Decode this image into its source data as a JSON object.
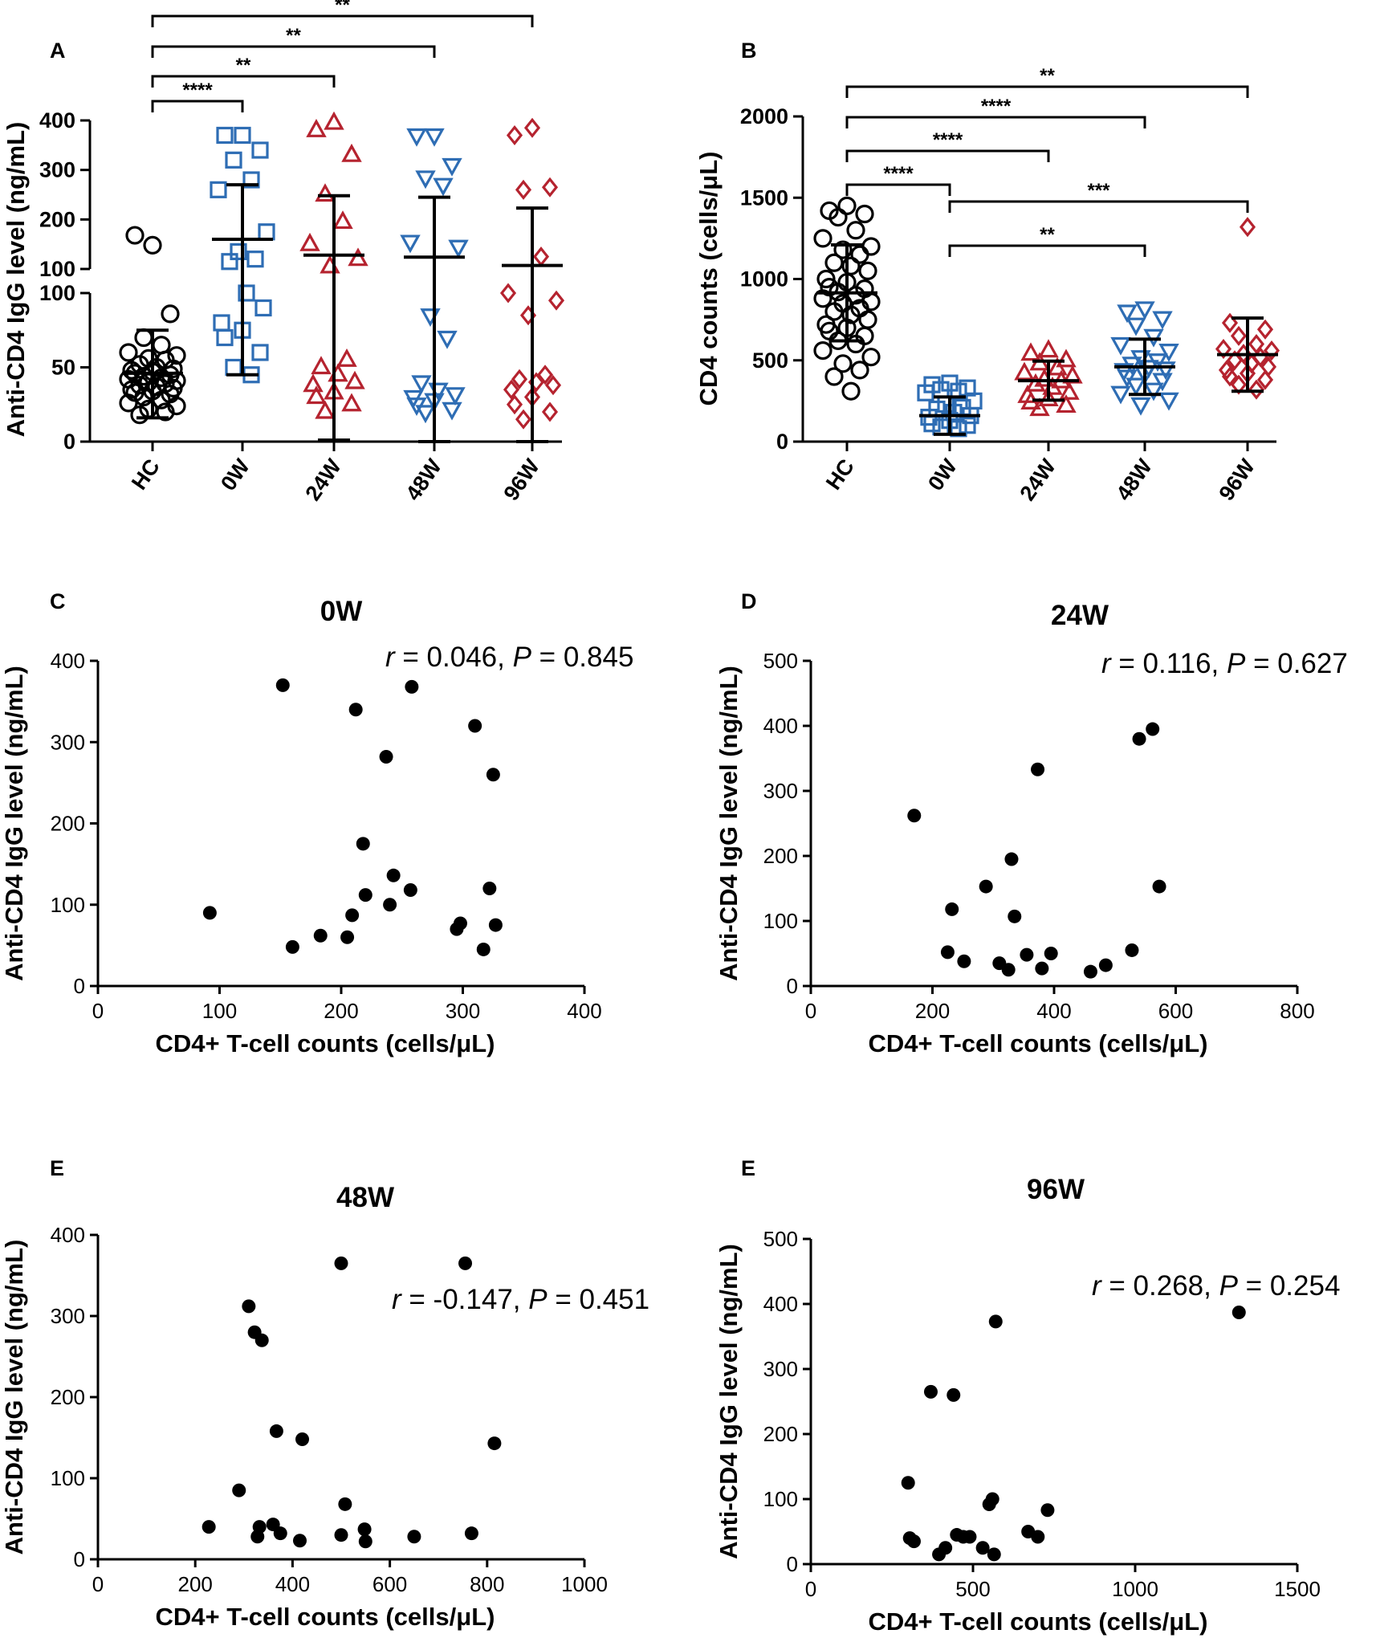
{
  "panel_labels": {
    "A": "A",
    "B": "B",
    "C": "C",
    "D": "D",
    "E1": "E",
    "E2": "E"
  },
  "colors": {
    "hc": "#000000",
    "w0": "#2e6db4",
    "w24": "#b5232f",
    "w48": "#2e6db4",
    "w96": "#b5232f"
  },
  "chart_data": [
    {
      "panel": "A",
      "type": "scatter",
      "title": "",
      "ylabel": "Anti-CD4 IgG level (ng/mL)",
      "y_break": {
        "lower": [
          0,
          100
        ],
        "upper": [
          100,
          400
        ]
      },
      "yticks_lower": [
        "0",
        "50",
        "100"
      ],
      "yticks_upper": [
        "100",
        "200",
        "300",
        "400"
      ],
      "categories": [
        "HC",
        "0W",
        "24W",
        "48W",
        "96W"
      ],
      "series": [
        {
          "name": "HC",
          "marker": "circle",
          "color": "#000000",
          "values": [
            148,
            168,
            86,
            70,
            65,
            60,
            58,
            56,
            55,
            52,
            50,
            49,
            48,
            47,
            46,
            45,
            44,
            43,
            42,
            41,
            40,
            39,
            38,
            37,
            36,
            35,
            34,
            33,
            32,
            30,
            28,
            26,
            24,
            22,
            20,
            18
          ],
          "mean": 46,
          "sd_low": 16,
          "sd_high": 75
        },
        {
          "name": "0W",
          "marker": "square",
          "color": "#2e6db4",
          "values": [
            370,
            370,
            340,
            320,
            280,
            260,
            175,
            135,
            120,
            115,
            100,
            90,
            80,
            75,
            70,
            60,
            50,
            45
          ],
          "mean": 160,
          "sd_low": 45,
          "sd_high": 270
        },
        {
          "name": "24W",
          "marker": "triangle-up",
          "color": "#b5232f",
          "values": [
            395,
            380,
            330,
            250,
            195,
            150,
            120,
            105,
            55,
            50,
            45,
            40,
            38,
            33,
            30,
            25,
            20
          ],
          "mean": 128,
          "sd_low": 1,
          "sd_high": 248
        },
        {
          "name": "48W",
          "marker": "triangle-down",
          "color": "#2e6db4",
          "values": [
            370,
            370,
            310,
            285,
            270,
            155,
            145,
            85,
            70,
            40,
            35,
            32,
            30,
            28,
            25,
            22,
            20
          ],
          "mean": 124,
          "sd_low": 0,
          "sd_high": 245
        },
        {
          "name": "96W",
          "marker": "diamond",
          "color": "#b5232f",
          "values": [
            385,
            370,
            265,
            260,
            125,
            100,
            95,
            85,
            45,
            42,
            40,
            38,
            35,
            30,
            25,
            20,
            15
          ],
          "mean": 107,
          "sd_low": 0,
          "sd_high": 223
        }
      ],
      "significance": [
        {
          "from": "HC",
          "to": "0W",
          "label": "****"
        },
        {
          "from": "HC",
          "to": "24W",
          "label": "**"
        },
        {
          "from": "HC",
          "to": "48W",
          "label": "**"
        },
        {
          "from": "HC",
          "to": "96W",
          "label": "**"
        }
      ]
    },
    {
      "panel": "B",
      "type": "scatter",
      "title": "",
      "ylabel": "CD4 counts (cells/μL)",
      "ylim": [
        0,
        2000
      ],
      "yticks": [
        "0",
        "500",
        "1000",
        "1500",
        "2000"
      ],
      "categories": [
        "HC",
        "0W",
        "24W",
        "48W",
        "96W"
      ],
      "series": [
        {
          "name": "HC",
          "marker": "circle",
          "color": "#000000",
          "values": [
            1450,
            1420,
            1400,
            1380,
            1300,
            1250,
            1200,
            1180,
            1150,
            1100,
            1080,
            1050,
            1000,
            980,
            950,
            940,
            920,
            900,
            880,
            860,
            850,
            820,
            800,
            780,
            750,
            720,
            700,
            680,
            650,
            620,
            600,
            560,
            520,
            480,
            440,
            400,
            310
          ],
          "mean": 915,
          "sd_low": 620,
          "sd_high": 1210
        },
        {
          "name": "0W",
          "marker": "square",
          "color": "#2e6db4",
          "values": [
            360,
            350,
            330,
            320,
            310,
            300,
            250,
            230,
            210,
            200,
            180,
            160,
            150,
            130,
            110,
            100,
            90,
            80
          ],
          "mean": 160,
          "sd_low": 45,
          "sd_high": 275
        },
        {
          "name": "24W",
          "marker": "triangle-up",
          "color": "#b5232f",
          "values": [
            560,
            540,
            500,
            480,
            450,
            420,
            400,
            380,
            370,
            350,
            330,
            300,
            280,
            260,
            240,
            220,
            200
          ],
          "mean": 375,
          "sd_low": 255,
          "sd_high": 495
        },
        {
          "name": "48W",
          "marker": "triangle-down",
          "color": "#2e6db4",
          "values": [
            820,
            800,
            760,
            720,
            650,
            600,
            560,
            520,
            500,
            480,
            460,
            450,
            440,
            420,
            400,
            380,
            350,
            320,
            300,
            260,
            230
          ],
          "mean": 460,
          "sd_low": 290,
          "sd_high": 630
        },
        {
          "name": "96W",
          "marker": "diamond",
          "color": "#b5232f",
          "values": [
            1320,
            730,
            690,
            650,
            600,
            570,
            560,
            540,
            520,
            500,
            480,
            460,
            440,
            420,
            400,
            380,
            350,
            320
          ],
          "mean": 535,
          "sd_low": 310,
          "sd_high": 760
        }
      ],
      "significance": [
        {
          "from": "HC",
          "to": "0W",
          "label": "****"
        },
        {
          "from": "HC",
          "to": "24W",
          "label": "****"
        },
        {
          "from": "HC",
          "to": "48W",
          "label": "****"
        },
        {
          "from": "HC",
          "to": "96W",
          "label": "**"
        },
        {
          "from": "0W",
          "to": "48W",
          "label": "**"
        },
        {
          "from": "0W",
          "to": "96W",
          "label": "***"
        }
      ]
    },
    {
      "panel": "C",
      "type": "scatter",
      "title": "0W",
      "xlabel": "CD4+ T-cell counts (cells/μL)",
      "ylabel": "Anti-CD4 IgG level (ng/mL)",
      "xlim": [
        0,
        400
      ],
      "ylim": [
        0,
        400
      ],
      "xticks": [
        "0",
        "100",
        "200",
        "300",
        "400"
      ],
      "yticks": [
        "0",
        "100",
        "200",
        "300",
        "400"
      ],
      "stat": {
        "r_label": "r",
        "r_text": " = 0.046, ",
        "p_label": "P",
        "p_text": " = 0.845"
      },
      "points": [
        [
          92,
          90
        ],
        [
          152,
          370
        ],
        [
          160,
          48
        ],
        [
          183,
          62
        ],
        [
          205,
          60
        ],
        [
          209,
          87
        ],
        [
          212,
          340
        ],
        [
          218,
          175
        ],
        [
          220,
          112
        ],
        [
          237,
          282
        ],
        [
          240,
          100
        ],
        [
          243,
          136
        ],
        [
          257,
          118
        ],
        [
          258,
          368
        ],
        [
          295,
          70
        ],
        [
          298,
          77
        ],
        [
          310,
          320
        ],
        [
          317,
          45
        ],
        [
          322,
          120
        ],
        [
          325,
          260
        ],
        [
          327,
          75
        ]
      ]
    },
    {
      "panel": "D",
      "type": "scatter",
      "title": "24W",
      "xlabel": "CD4+ T-cell counts (cells/μL)",
      "ylabel": "Anti-CD4 IgG level (ng/mL)",
      "xlim": [
        0,
        800
      ],
      "ylim": [
        0,
        500
      ],
      "xticks": [
        "0",
        "200",
        "400",
        "600",
        "800"
      ],
      "yticks": [
        "0",
        "100",
        "200",
        "300",
        "400",
        "500"
      ],
      "stat": {
        "r_label": "r",
        "r_text": " = 0.116, ",
        "p_label": "P",
        "p_text": " = 0.627"
      },
      "points": [
        [
          170,
          262
        ],
        [
          225,
          52
        ],
        [
          232,
          118
        ],
        [
          252,
          38
        ],
        [
          288,
          153
        ],
        [
          310,
          35
        ],
        [
          325,
          25
        ],
        [
          330,
          195
        ],
        [
          335,
          107
        ],
        [
          355,
          48
        ],
        [
          373,
          333
        ],
        [
          380,
          27
        ],
        [
          395,
          50
        ],
        [
          460,
          22
        ],
        [
          485,
          32
        ],
        [
          528,
          55
        ],
        [
          540,
          380
        ],
        [
          562,
          395
        ],
        [
          573,
          153
        ]
      ]
    },
    {
      "panel": "E",
      "type": "scatter",
      "title": "48W",
      "xlabel": "CD4+ T-cell counts (cells/μL)",
      "ylabel": "Anti-CD4 IgG level (ng/mL)",
      "xlim": [
        0,
        1000
      ],
      "ylim": [
        0,
        400
      ],
      "xticks": [
        "0",
        "200",
        "400",
        "600",
        "800",
        "1000"
      ],
      "yticks": [
        "0",
        "100",
        "200",
        "300",
        "400"
      ],
      "stat": {
        "r_label": "r",
        "r_text": " = -0.147, ",
        "p_label": "P",
        "p_text": " = 0.451"
      },
      "points": [
        [
          228,
          40
        ],
        [
          290,
          85
        ],
        [
          310,
          312
        ],
        [
          322,
          280
        ],
        [
          328,
          28
        ],
        [
          332,
          40
        ],
        [
          337,
          270
        ],
        [
          360,
          43
        ],
        [
          367,
          158
        ],
        [
          375,
          32
        ],
        [
          415,
          23
        ],
        [
          420,
          148
        ],
        [
          500,
          365
        ],
        [
          500,
          30
        ],
        [
          508,
          68
        ],
        [
          548,
          37
        ],
        [
          550,
          22
        ],
        [
          650,
          28
        ],
        [
          755,
          365
        ],
        [
          768,
          32
        ],
        [
          815,
          143
        ]
      ]
    },
    {
      "panel": "E",
      "type": "scatter",
      "title": "96W",
      "xlabel": "CD4+ T-cell counts (cells/μL)",
      "ylabel": "Anti-CD4 IgG level (ng/mL)",
      "xlim": [
        0,
        1500
      ],
      "ylim": [
        0,
        500
      ],
      "xticks": [
        "0",
        "500",
        "1000",
        "1500"
      ],
      "yticks": [
        "0",
        "100",
        "200",
        "300",
        "400",
        "500"
      ],
      "stat": {
        "r_label": "r",
        "r_text": " = 0.268, ",
        "p_label": "P",
        "p_text": " = 0.254"
      },
      "points": [
        [
          300,
          125
        ],
        [
          305,
          40
        ],
        [
          318,
          35
        ],
        [
          370,
          265
        ],
        [
          395,
          15
        ],
        [
          415,
          25
        ],
        [
          440,
          260
        ],
        [
          450,
          45
        ],
        [
          470,
          42
        ],
        [
          490,
          42
        ],
        [
          530,
          25
        ],
        [
          550,
          92
        ],
        [
          560,
          100
        ],
        [
          565,
          15
        ],
        [
          570,
          373
        ],
        [
          670,
          50
        ],
        [
          700,
          42
        ],
        [
          730,
          83
        ],
        [
          1320,
          387
        ]
      ]
    }
  ]
}
